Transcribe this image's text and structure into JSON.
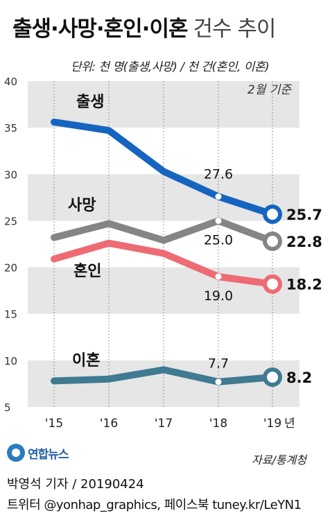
{
  "header": {
    "title_bold": "출생·사망·혼인·이혼",
    "title_light": "건수 추이",
    "unit_note": "단위: 천 명(출생,사망) / 천 건(혼인, 이혼)",
    "basis": "2월 기준"
  },
  "source": "자료/통계청",
  "logo_text": "연합뉴스",
  "footer": {
    "line1": "박영석 기자 / 20190424",
    "line2": "트위터 @yonhap_graphics, 페이스북 tuney.kr/LeYN1"
  },
  "chart_data": {
    "type": "line",
    "categories": [
      "'15",
      "'16",
      "'17",
      "'18",
      "'19"
    ],
    "x_suffix": "년",
    "ylim": [
      5,
      40
    ],
    "yticks": [
      5,
      10,
      15,
      20,
      25,
      30,
      35,
      40
    ],
    "grid": "alternating horizontal bands",
    "series": [
      {
        "name": "출생",
        "color": "#1565c0",
        "values": [
          35.6,
          34.7,
          30.3,
          27.6,
          25.7
        ]
      },
      {
        "name": "사망",
        "color": "#858585",
        "values": [
          23.2,
          24.7,
          22.9,
          25.0,
          22.8
        ]
      },
      {
        "name": "혼인",
        "color": "#ee6b74",
        "values": [
          20.9,
          22.6,
          21.5,
          19.0,
          18.2
        ]
      },
      {
        "name": "이혼",
        "color": "#3f7a92",
        "values": [
          7.8,
          8.0,
          9.0,
          7.7,
          8.2
        ]
      }
    ],
    "annotations": [
      {
        "series": "출생",
        "index": 3,
        "label": "27.6"
      },
      {
        "series": "출생",
        "index": 4,
        "label": "25.7"
      },
      {
        "series": "사망",
        "index": 3,
        "label": "25.0"
      },
      {
        "series": "사망",
        "index": 4,
        "label": "22.8"
      },
      {
        "series": "혼인",
        "index": 3,
        "label": "19.0"
      },
      {
        "series": "혼인",
        "index": 4,
        "label": "18.2"
      },
      {
        "series": "이혼",
        "index": 3,
        "label": "7.7"
      },
      {
        "series": "이혼",
        "index": 4,
        "label": "8.2"
      }
    ]
  }
}
